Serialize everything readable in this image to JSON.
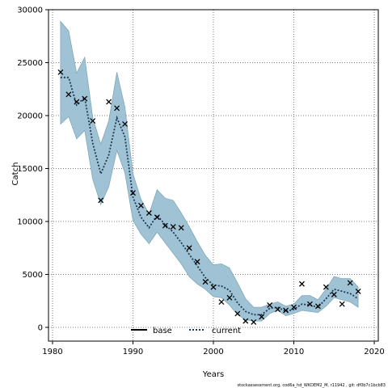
{
  "chart_data": {
    "type": "line",
    "xlabel": "Years",
    "ylabel": "Catch",
    "xlim": [
      1979.5,
      2020.5
    ],
    "ylim": [
      -1300,
      30000
    ],
    "xticks": [
      1980,
      1990,
      2000,
      2010,
      2020
    ],
    "yticks": [
      0,
      5000,
      10000,
      15000,
      20000,
      25000,
      30000
    ],
    "grid": true,
    "legend_position": "bottom-center",
    "legend": [
      {
        "name": "base",
        "style": "solid",
        "color": "#000000"
      },
      {
        "name": "current",
        "style": "dotted",
        "color": "#1f3b5a"
      }
    ],
    "band_color": "#9fc3d4",
    "band_edge_color": "#7fa8ba",
    "years": [
      1981,
      1982,
      1983,
      1984,
      1985,
      1986,
      1987,
      1988,
      1989,
      1990,
      1991,
      1992,
      1993,
      1994,
      1995,
      1996,
      1997,
      1998,
      1999,
      2000,
      2001,
      2002,
      2003,
      2004,
      2005,
      2006,
      2007,
      2008,
      2009,
      2010,
      2011,
      2012,
      2013,
      2014,
      2015,
      2016,
      2017,
      2018
    ],
    "series": [
      {
        "name": "current",
        "values": [
          23600,
          23600,
          21000,
          21700,
          17400,
          14500,
          16300,
          19800,
          18000,
          12300,
          10400,
          9400,
          10600,
          9700,
          9000,
          8000,
          6900,
          5800,
          4700,
          4000,
          3900,
          3500,
          2300,
          1500,
          1200,
          1200,
          1800,
          1900,
          1500,
          1700,
          2200,
          2100,
          1900,
          2700,
          3600,
          3400,
          3200,
          2700
        ]
      },
      {
        "name": "base",
        "values": [
          23600,
          23600,
          21000,
          21700,
          17400,
          14500,
          16300,
          19800,
          18000,
          12300,
          10400,
          9400,
          10600,
          9700,
          9000,
          8000,
          6900,
          5800,
          4700,
          4000,
          3900,
          3500,
          2300,
          1500,
          1200,
          1200,
          1800,
          1900,
          1500,
          1700,
          2200,
          2100,
          1900,
          2700,
          3600,
          3400,
          3200,
          2700
        ]
      }
    ],
    "band_upper": [
      28900,
      28000,
      24000,
      25500,
      19800,
      17300,
      19500,
      24100,
      20800,
      14500,
      12100,
      10700,
      13000,
      12200,
      12000,
      10800,
      9500,
      8100,
      6800,
      5900,
      6000,
      5600,
      4200,
      2700,
      1900,
      1900,
      2200,
      2400,
      2000,
      2200,
      3000,
      3000,
      2600,
      3600,
      4800,
      4600,
      4600,
      3800
    ],
    "band_lower": [
      19200,
      19900,
      17800,
      18600,
      14000,
      11600,
      13300,
      16700,
      14600,
      10100,
      8800,
      7900,
      9000,
      8000,
      7000,
      6000,
      4800,
      4100,
      3600,
      2900,
      2800,
      2100,
      1200,
      700,
      600,
      600,
      1300,
      1600,
      1100,
      1300,
      1600,
      1500,
      1400,
      2000,
      2800,
      2600,
      2400,
      1900
    ],
    "observed": {
      "x": [
        1981,
        1982,
        1983,
        1984,
        1985,
        1986,
        1987,
        1988,
        1989,
        1990,
        1991,
        1992,
        1993,
        1994,
        1995,
        1996,
        1997,
        1998,
        1999,
        2000,
        2001,
        2002,
        2003,
        2004,
        2005,
        2006,
        2007,
        2008,
        2009,
        2010,
        2011,
        2012,
        2013,
        2014,
        2015,
        2016,
        2017,
        2018
      ],
      "y": [
        24100,
        22000,
        21300,
        21600,
        19500,
        12000,
        21300,
        20700,
        19200,
        12700,
        11500,
        10800,
        10400,
        9600,
        9500,
        9400,
        7500,
        6200,
        4300,
        3800,
        2400,
        2800,
        1300,
        600,
        500,
        1000,
        2100,
        1700,
        1600,
        1900,
        4100,
        2200,
        2000,
        3800,
        3100,
        2200,
        4200,
        3400
      ]
    }
  },
  "footnote": "stockassessment.org, cod6a_hd_WKDEM2_M, r11942 , git: df0b7c1bcb83"
}
